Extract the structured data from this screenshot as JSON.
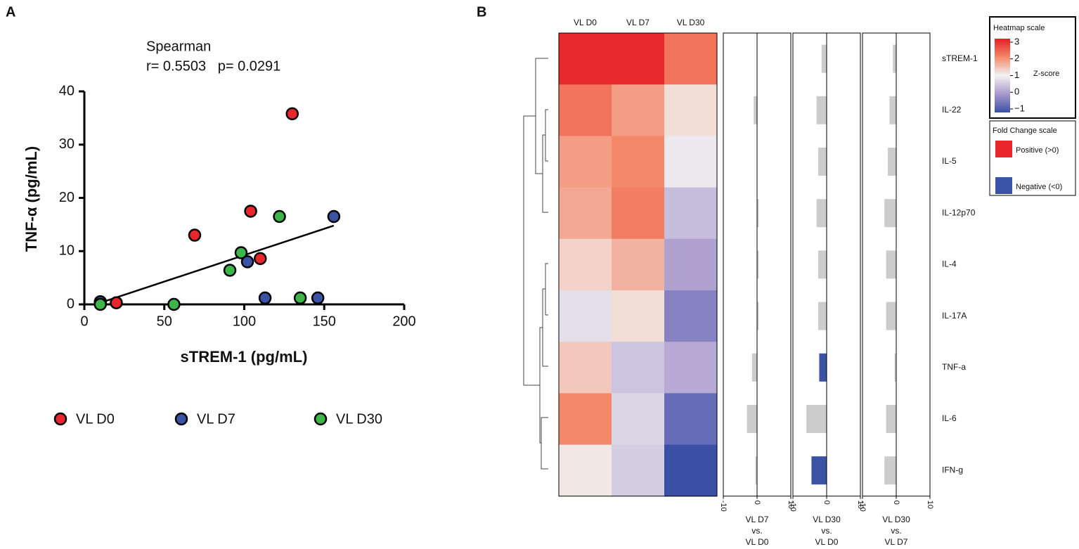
{
  "chart_data": [
    {
      "type": "scatter",
      "panel": "A",
      "annotations": [
        "Spearman",
        "r= 0.5503   p= 0.0291"
      ],
      "xlabel": "sTREM-1 (pg/mL)",
      "ylabel": "TNF-α (pg/mL)",
      "xlim": [
        0,
        200
      ],
      "xticks": [
        0,
        50,
        100,
        150,
        200
      ],
      "ylim": [
        0,
        40
      ],
      "yticks": [
        0,
        10,
        20,
        30,
        40
      ],
      "series": [
        {
          "name": "VL D0",
          "color": "#e8262b",
          "x": [
            20,
            69,
            104,
            110,
            130
          ],
          "y": [
            0.3,
            13,
            17.5,
            8.6,
            35.8
          ]
        },
        {
          "name": "VL D7",
          "color": "#3a53a4",
          "x": [
            10,
            102,
            113,
            146,
            156
          ],
          "y": [
            0.5,
            8,
            1.2,
            1.2,
            16.5
          ]
        },
        {
          "name": "VL D30",
          "color": "#3db54a",
          "x": [
            10,
            56,
            91,
            98,
            122,
            135
          ],
          "y": [
            0,
            0,
            6.4,
            9.7,
            16.5,
            1.2
          ]
        }
      ],
      "trendline": {
        "x": [
          10,
          156
        ],
        "y": [
          0.3,
          14.8
        ]
      }
    },
    {
      "type": "heatmap",
      "panel": "B",
      "columns": [
        "VL D0",
        "VL D7",
        "VL D30"
      ],
      "rows": [
        "sTREM-1",
        "IL-22",
        "IL-5",
        "IL-12p70",
        "IL-4",
        "IL-17A",
        "TNF-a",
        "IL-6",
        "IFN-g"
      ],
      "values": [
        [
          2.9,
          2.9,
          2.2
        ],
        [
          2.2,
          1.8,
          1.2
        ],
        [
          1.8,
          2.0,
          0.9
        ],
        [
          1.7,
          2.1,
          0.4
        ],
        [
          1.3,
          1.6,
          0.1
        ],
        [
          0.8,
          1.2,
          -0.3
        ],
        [
          1.4,
          0.5,
          0.2
        ],
        [
          2.0,
          0.7,
          -0.6
        ],
        [
          1.1,
          0.6,
          -1.0
        ]
      ],
      "colorscale": [
        [
          -1,
          "#3a4fa6"
        ],
        [
          0,
          "#a898cc"
        ],
        [
          1,
          "#f2f2f2"
        ],
        [
          2,
          "#f4886a"
        ],
        [
          3,
          "#e41e25"
        ]
      ],
      "colorbar": {
        "title": "Heatmap scale",
        "label": "Z-score",
        "ticks": [
          3,
          2,
          1,
          0,
          {
            "value": -1,
            "label": "−1"
          }
        ]
      },
      "fold_change": {
        "xlim": [
          -10,
          10
        ],
        "xticks": [
          -10,
          0,
          10
        ],
        "panels": [
          {
            "title": [
              "VL D7",
              "vs.",
              "VL D0"
            ],
            "values": [
              0,
              -1,
              0,
              0.5,
              0.5,
              0.5,
              -1.5,
              -3,
              -0.5
            ],
            "colors": [
              "#cccccc",
              "#cccccc",
              "#cccccc",
              "#cccccc",
              "#cccccc",
              "#cccccc",
              "#cccccc",
              "#cccccc",
              "#cccccc"
            ]
          },
          {
            "title": [
              "VL D30",
              "vs.",
              "VL D0"
            ],
            "values": [
              -1.5,
              -3,
              -2.5,
              -3,
              -2.5,
              -2.5,
              -2.2,
              -6,
              -4.5
            ],
            "colors": [
              "#cccccc",
              "#cccccc",
              "#cccccc",
              "#cccccc",
              "#cccccc",
              "#cccccc",
              "#3a53a4",
              "#cccccc",
              "#3a53a4"
            ]
          },
          {
            "title": [
              "VL D30",
              "vs.",
              "VL D7"
            ],
            "values": [
              -1,
              -2,
              -2.5,
              -3.5,
              -3,
              -3,
              -0.5,
              -3,
              -3.5
            ],
            "colors": [
              "#cccccc",
              "#cccccc",
              "#cccccc",
              "#cccccc",
              "#cccccc",
              "#cccccc",
              "#cccccc",
              "#cccccc",
              "#cccccc"
            ]
          }
        ]
      },
      "legend": {
        "title": "Fold Change scale",
        "items": [
          {
            "label": "Positive (>0)",
            "color": "#e8262b"
          },
          {
            "label": "Negative (<0)",
            "color": "#3a53a4"
          }
        ]
      }
    }
  ]
}
